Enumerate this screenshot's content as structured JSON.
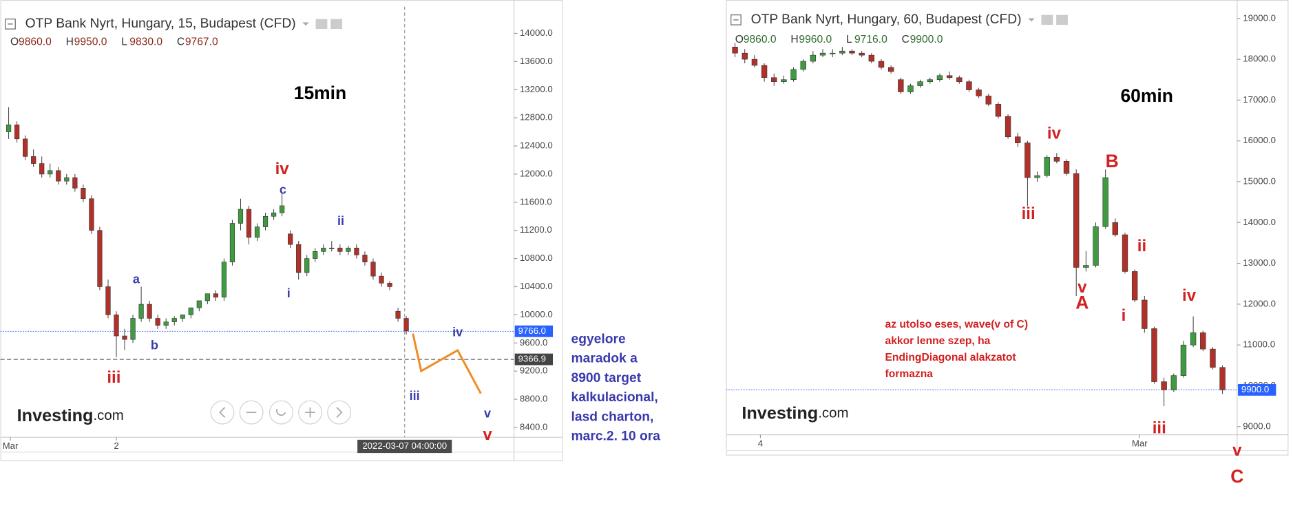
{
  "chart_data": [
    {
      "type": "candlestick",
      "title": "OTP Bank Nyrt, Hungary, 15, Budapest (CFD)",
      "ohlc": [
        {
          "key": "O",
          "value": "9860.0"
        },
        {
          "key": "H",
          "value": "9950.0"
        },
        {
          "key": "L",
          "value": "9830.0"
        },
        {
          "key": "C",
          "value": "9767.0"
        }
      ],
      "ohlc_color": "#8b2a1a",
      "up_color": "#3f9b3f",
      "down_color": "#b0302a",
      "open": [
        12600,
        12700,
        12500,
        12250,
        12150,
        12000,
        12050,
        11900,
        11950,
        11800,
        11650,
        11200,
        10400,
        10000,
        9700,
        9650,
        9950,
        10150,
        9950,
        9850,
        9900,
        9950,
        10000,
        10100,
        10200,
        10300,
        10250,
        10750,
        11300,
        11500,
        11100,
        11250,
        11400,
        11450,
        11150,
        11000,
        10600,
        10800,
        10900,
        10950,
        10950,
        10900,
        10950,
        10850,
        10750,
        10550,
        10450,
        10050,
        9950
      ],
      "high": [
        12950,
        12750,
        12550,
        12350,
        12250,
        12150,
        12100,
        12000,
        12000,
        11850,
        11700,
        11250,
        10500,
        10050,
        9800,
        10000,
        10400,
        10200,
        10000,
        9950,
        9980,
        10000,
        10080,
        10150,
        10250,
        10350,
        10800,
        11350,
        11650,
        11550,
        11300,
        11450,
        11500,
        11750,
        11200,
        11050,
        10850,
        10950,
        11000,
        11050,
        11000,
        10980,
        11000,
        10900,
        10800,
        10600,
        10480,
        10100,
        9980
      ],
      "low": [
        12500,
        12450,
        12200,
        12100,
        11950,
        11950,
        11850,
        11850,
        11750,
        11600,
        11150,
        10350,
        9950,
        9400,
        9500,
        9600,
        9900,
        9900,
        9800,
        9800,
        9850,
        9900,
        9950,
        10050,
        10150,
        10200,
        10200,
        10700,
        11200,
        11000,
        11050,
        11200,
        11350,
        11400,
        10950,
        10500,
        10550,
        10750,
        10850,
        10900,
        10850,
        10850,
        10800,
        10700,
        10500,
        10400,
        10350,
        9900,
        9720
      ],
      "close": [
        12700,
        12500,
        12250,
        12150,
        12000,
        12050,
        11900,
        11950,
        11800,
        11650,
        11200,
        10400,
        10000,
        9700,
        9650,
        9950,
        10150,
        9950,
        9850,
        9900,
        9950,
        10000,
        10100,
        10200,
        10300,
        10250,
        10750,
        11300,
        11500,
        11100,
        11250,
        11400,
        11450,
        11550,
        11000,
        10600,
        10800,
        10900,
        10950,
        10950,
        10900,
        10950,
        10850,
        10750,
        10550,
        10450,
        10400,
        9950,
        9770
      ],
      "xlim": [
        0,
        61.5
      ],
      "xticks": [
        {
          "value": 0.7,
          "label": "Mar"
        },
        {
          "value": 13.5,
          "label": "2"
        }
      ],
      "ylim": [
        8260,
        14380
      ],
      "yticks": [
        {
          "value": 8400,
          "label": "8400.0"
        },
        {
          "value": 8800,
          "label": "8800.0"
        },
        {
          "value": 9200,
          "label": "9200.0"
        },
        {
          "value": 9600,
          "label": "9600.0"
        },
        {
          "value": 10000,
          "label": "10000.0"
        },
        {
          "value": 10400,
          "label": "10400.0"
        },
        {
          "value": 10800,
          "label": "10800.0"
        },
        {
          "value": 11200,
          "label": "11200.0"
        },
        {
          "value": 11600,
          "label": "11600.0"
        },
        {
          "value": 12000,
          "label": "12000.0"
        },
        {
          "value": 12400,
          "label": "12400.0"
        },
        {
          "value": 12800,
          "label": "12800.0"
        },
        {
          "value": 13200,
          "label": "13200.0"
        },
        {
          "value": 13600,
          "label": "13600.0"
        },
        {
          "value": 14000,
          "label": "14000.0"
        }
      ],
      "price_lines": [
        {
          "value": 9766,
          "label": "9766.0",
          "color": "#2962ff"
        },
        {
          "value": 9366.9,
          "label": "9366.9",
          "color": "#444444"
        }
      ],
      "crosshair": {
        "x": 48.3,
        "label": "2022-03-07 04:00:00"
      },
      "projection": {
        "color": "#f08c24",
        "x": [
          49.3,
          50.3,
          54.7,
          57.5
        ],
        "values": [
          9733,
          9201,
          9496,
          8882
        ]
      },
      "annotations": [
        {
          "text": "15min",
          "color": "#000000"
        },
        {
          "text": "iv",
          "color": "#d32020"
        },
        {
          "text": "c",
          "color": "#3a3aad"
        },
        {
          "text": "ii",
          "color": "#3a3aad"
        },
        {
          "text": "i",
          "color": "#3a3aad"
        },
        {
          "text": "a",
          "color": "#3a3aad"
        },
        {
          "text": "b",
          "color": "#3a3aad"
        },
        {
          "text": "iii",
          "color": "#d32020"
        },
        {
          "text": "iii",
          "color": "#3a3aad"
        },
        {
          "text": "iv",
          "color": "#3a3aad"
        },
        {
          "text": "v",
          "color": "#3a3aad"
        },
        {
          "text": "v",
          "color": "#d32020"
        }
      ],
      "note": {
        "color": "#3a3aad",
        "lines": [
          "egyelore",
          "maradok a",
          "8900 target",
          "kalkulacional,",
          "lasd charton,",
          "marc.2. 10 ora"
        ]
      },
      "logo": [
        "Investing",
        ".com"
      ]
    },
    {
      "type": "candlestick",
      "title": "OTP Bank Nyrt, Hungary, 60, Budapest (CFD)",
      "ohlc": [
        {
          "key": "O",
          "value": "9860.0"
        },
        {
          "key": "H",
          "value": "9960.0"
        },
        {
          "key": "L",
          "value": "9716.0"
        },
        {
          "key": "C",
          "value": "9900.0"
        }
      ],
      "ohlc_color": "#2e6b2e",
      "up_color": "#3f9b3f",
      "down_color": "#b0302a",
      "open": [
        18300,
        18150,
        18000,
        17850,
        17550,
        17450,
        17500,
        17750,
        17950,
        18100,
        18150,
        18150,
        18200,
        18150,
        18100,
        17950,
        17800,
        17500,
        17200,
        17350,
        17450,
        17500,
        17600,
        17550,
        17450,
        17250,
        17100,
        16900,
        16600,
        16100,
        15950,
        15100,
        15150,
        15600,
        15500,
        15200,
        12900,
        12950,
        13900,
        14000,
        13700,
        12800,
        12100,
        11400,
        10100,
        9900,
        10250,
        11000,
        11300,
        10900,
        10450
      ],
      "high": [
        18400,
        18250,
        18100,
        17900,
        17650,
        17600,
        17800,
        18000,
        18200,
        18250,
        18250,
        18300,
        18250,
        18200,
        18150,
        18000,
        17850,
        17550,
        17400,
        17500,
        17550,
        17650,
        17700,
        17600,
        17500,
        17300,
        17150,
        16950,
        16650,
        16200,
        16000,
        15250,
        15650,
        15700,
        15550,
        15300,
        13300,
        14000,
        15300,
        14100,
        13750,
        12850,
        12200,
        11450,
        10200,
        10300,
        11100,
        11700,
        11350,
        10950,
        10500
      ],
      "low": [
        18050,
        17900,
        17800,
        17450,
        17350,
        17400,
        17450,
        17700,
        17900,
        18050,
        18050,
        18100,
        18100,
        18050,
        17900,
        17750,
        17650,
        17150,
        17150,
        17300,
        17400,
        17450,
        17500,
        17400,
        17200,
        17050,
        16850,
        16550,
        16050,
        15850,
        14400,
        15000,
        15100,
        15450,
        15150,
        12200,
        12800,
        12900,
        13850,
        13650,
        12750,
        12050,
        11300,
        10050,
        9500,
        9850,
        10200,
        10950,
        10850,
        10400,
        9800
      ],
      "close": [
        18150,
        18000,
        17850,
        17550,
        17450,
        17500,
        17750,
        17950,
        18100,
        18150,
        18150,
        18200,
        18150,
        18100,
        17950,
        17800,
        17700,
        17200,
        17350,
        17450,
        17500,
        17600,
        17550,
        17450,
        17250,
        17100,
        16900,
        16600,
        16100,
        15950,
        15100,
        15150,
        15600,
        15500,
        15200,
        12900,
        12950,
        13900,
        15100,
        13700,
        12800,
        12100,
        11400,
        10100,
        9900,
        10250,
        11000,
        11300,
        10900,
        10450,
        9900
      ],
      "xlim": [
        0,
        52
      ],
      "xticks": [
        {
          "value": 3.1,
          "label": "4"
        },
        {
          "value": 42.0,
          "label": "Mar"
        }
      ],
      "ylim": [
        8800,
        19350
      ],
      "yticks": [
        {
          "value": 9000,
          "label": "9000.0"
        },
        {
          "value": 10000,
          "label": "10000.0"
        },
        {
          "value": 11000,
          "label": "11000.0"
        },
        {
          "value": 12000,
          "label": "12000.0"
        },
        {
          "value": 13000,
          "label": "13000.0"
        },
        {
          "value": 14000,
          "label": "14000.0"
        },
        {
          "value": 15000,
          "label": "15000.0"
        },
        {
          "value": 16000,
          "label": "16000.0"
        },
        {
          "value": 17000,
          "label": "17000.0"
        },
        {
          "value": 18000,
          "label": "18000.0"
        },
        {
          "value": 19000,
          "label": "19000.0"
        }
      ],
      "price_lines": [
        {
          "value": 9900,
          "label": "9900.0",
          "color": "#2962ff"
        }
      ],
      "annotations": [
        {
          "text": "60min",
          "color": "#000000"
        },
        {
          "text": "iv",
          "color": "#d32020"
        },
        {
          "text": "iii",
          "color": "#d32020"
        },
        {
          "text": "B",
          "color": "#d32020"
        },
        {
          "text": "v",
          "color": "#d32020"
        },
        {
          "text": "A",
          "color": "#d32020"
        },
        {
          "text": "ii",
          "color": "#d32020"
        },
        {
          "text": "i",
          "color": "#d32020"
        },
        {
          "text": "iv",
          "color": "#d32020"
        },
        {
          "text": "iii",
          "color": "#d32020"
        },
        {
          "text": "v",
          "color": "#d32020"
        },
        {
          "text": "C",
          "color": "#d32020"
        }
      ],
      "note": {
        "color": "#d32020",
        "lines": [
          "az utolso eses, wave(v of C)",
          "akkor lenne szep, ha",
          "EndingDiagonal alakzatot",
          "formazna"
        ]
      },
      "logo": [
        "Investing",
        ".com"
      ]
    }
  ]
}
